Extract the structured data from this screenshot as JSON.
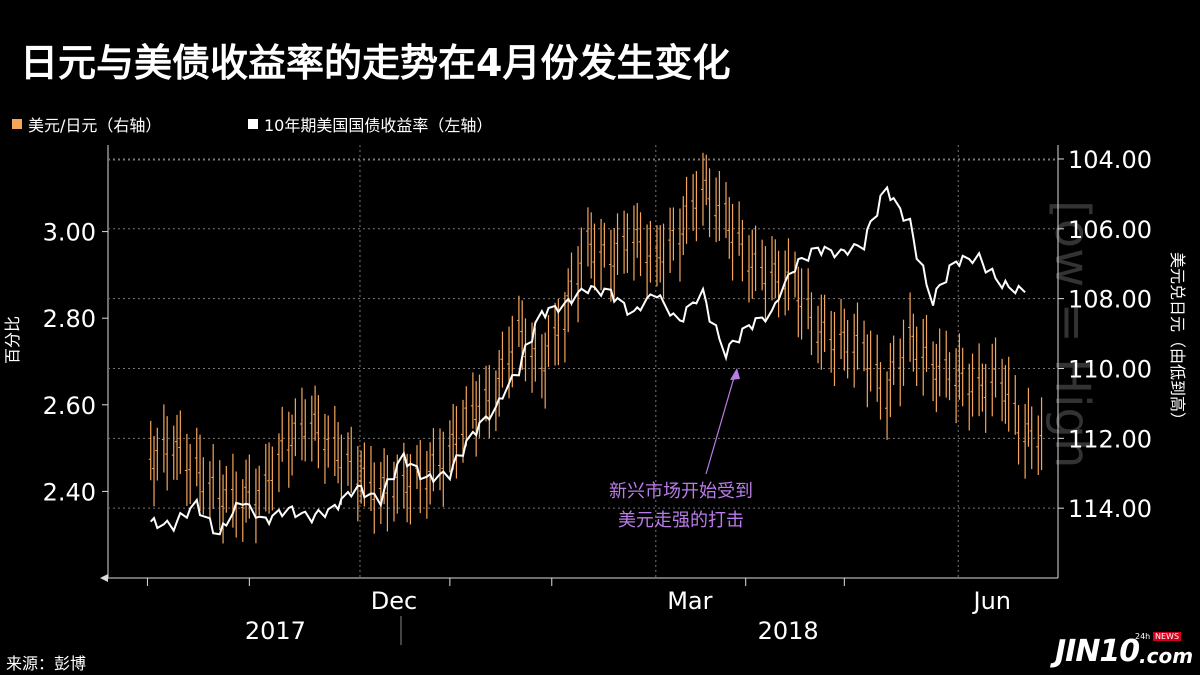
{
  "title": "日元与美债收益率的走势在4月份发生变化",
  "legend": [
    {
      "label": "美元/日元（右轴）",
      "color": "#f5a55a"
    },
    {
      "label": "10年期美国国债收益率（左轴）",
      "color": "#ffffff"
    }
  ],
  "source": "来源：彭博",
  "logo": {
    "text": "JIN10",
    "domain": ".com",
    "badge": "NEWS",
    "prefix": "24h"
  },
  "watermark": "[ow = High",
  "colors": {
    "background": "#000000",
    "usdjpy": "#f5a55a",
    "yield": "#ffffff",
    "annotation": "#b97ce8",
    "grid": "#777777"
  },
  "chart_data": {
    "type": "line",
    "left_axis": {
      "label": "百分比",
      "ticks": [
        "2.40",
        "2.60",
        "2.80",
        "3.00"
      ],
      "ylim": [
        2.2,
        3.2
      ]
    },
    "right_axis": {
      "label": "美元兑日元（由低到高）",
      "ticks": [
        "104.00",
        "106.00",
        "108.00",
        "110.00",
        "112.00",
        "114.00"
      ],
      "ylim": [
        116.0,
        103.6
      ],
      "inverted": true
    },
    "x_ticks": [
      "Dec",
      "Mar",
      "Jun"
    ],
    "years": [
      "2017",
      "2018"
    ],
    "annotation": {
      "lines": [
        "新兴市场开始受到",
        "美元走强的打击"
      ]
    },
    "series": [
      {
        "name": "10年期美国国债收益率（左轴）",
        "axis": "left",
        "style": "line",
        "x": [
          "2017-10-02",
          "2017-10-09",
          "2017-10-16",
          "2017-10-23",
          "2017-10-30",
          "2017-11-06",
          "2017-11-13",
          "2017-11-20",
          "2017-11-27",
          "2017-12-04",
          "2017-12-11",
          "2017-12-18",
          "2017-12-25",
          "2018-01-01",
          "2018-01-08",
          "2018-01-15",
          "2018-01-22",
          "2018-01-29",
          "2018-02-05",
          "2018-02-12",
          "2018-02-19",
          "2018-02-26",
          "2018-03-05",
          "2018-03-12",
          "2018-03-19",
          "2018-03-26",
          "2018-04-02",
          "2018-04-09",
          "2018-04-16",
          "2018-04-23",
          "2018-04-30",
          "2018-05-07",
          "2018-05-14",
          "2018-05-21",
          "2018-05-28",
          "2018-06-04",
          "2018-06-11",
          "2018-06-18",
          "2018-06-25"
        ],
        "values": [
          2.33,
          2.32,
          2.37,
          2.3,
          2.38,
          2.33,
          2.36,
          2.34,
          2.36,
          2.41,
          2.38,
          2.48,
          2.43,
          2.44,
          2.53,
          2.59,
          2.68,
          2.81,
          2.83,
          2.87,
          2.86,
          2.81,
          2.86,
          2.79,
          2.86,
          2.72,
          2.78,
          2.81,
          2.92,
          2.96,
          2.95,
          2.97,
          3.1,
          3.02,
          2.84,
          2.93,
          2.94,
          2.88,
          2.86
        ]
      },
      {
        "name": "美元/日元（右轴）",
        "axis": "right",
        "style": "hilo",
        "x": [
          "2017-10-02",
          "2017-10-09",
          "2017-10-16",
          "2017-10-23",
          "2017-10-30",
          "2017-11-06",
          "2017-11-13",
          "2017-11-20",
          "2017-11-27",
          "2017-12-04",
          "2017-12-11",
          "2017-12-18",
          "2017-12-25",
          "2018-01-01",
          "2018-01-08",
          "2018-01-15",
          "2018-01-22",
          "2018-01-29",
          "2018-02-05",
          "2018-02-12",
          "2018-02-19",
          "2018-02-26",
          "2018-03-05",
          "2018-03-12",
          "2018-03-19",
          "2018-03-26",
          "2018-04-02",
          "2018-04-09",
          "2018-04-16",
          "2018-04-23",
          "2018-04-30",
          "2018-05-07",
          "2018-05-14",
          "2018-05-21",
          "2018-05-28",
          "2018-06-04",
          "2018-06-11",
          "2018-06-18",
          "2018-06-25"
        ],
        "values": [
          112.6,
          112.2,
          112.9,
          113.6,
          113.8,
          113.4,
          112.1,
          111.5,
          112.3,
          113.0,
          113.5,
          113.3,
          113.1,
          112.4,
          111.2,
          110.8,
          108.9,
          110.0,
          108.6,
          106.4,
          106.9,
          106.2,
          106.9,
          106.2,
          104.8,
          105.6,
          106.9,
          107.3,
          107.5,
          108.9,
          109.2,
          109.4,
          110.8,
          109.1,
          109.9,
          110.2,
          110.6,
          110.3,
          111.9
        ]
      }
    ]
  }
}
